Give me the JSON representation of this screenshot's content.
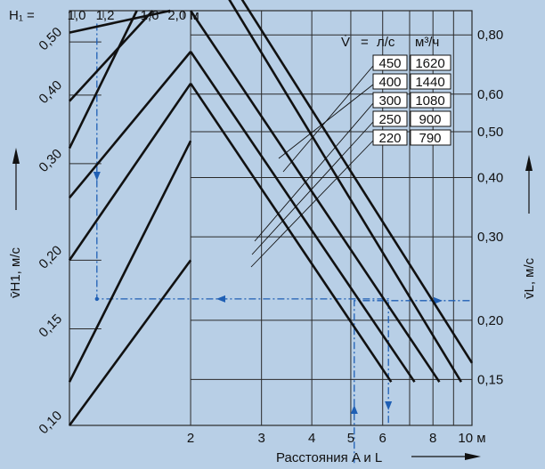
{
  "colors": {
    "background": "#b8cfe6",
    "grid": "#2a2a2a",
    "series_line": "#111111",
    "example_path": "#1f5fb4",
    "label_box": "#ffffff"
  },
  "top_axis": {
    "label": "H₁ =",
    "ticks": [
      {
        "value": 1.0,
        "label": "1,0"
      },
      {
        "value": 1.2,
        "label": "1,2"
      },
      {
        "value": 1.6,
        "label": "1,6"
      },
      {
        "value": 2.0,
        "label": "2,0 м"
      }
    ]
  },
  "legend": {
    "header_v": "V̇",
    "header_eq": "=",
    "header_ls": "л/с",
    "header_m3h": "м³/ч",
    "rows": [
      {
        "ls": "450",
        "m3h": "1620"
      },
      {
        "ls": "400",
        "m3h": "1440"
      },
      {
        "ls": "300",
        "m3h": "1080"
      },
      {
        "ls": "250",
        "m3h": "900"
      },
      {
        "ls": "220",
        "m3h": "790"
      }
    ]
  },
  "left_axis_title": "v̄H1, м/с",
  "right_axis_title": "v̄L, м/с",
  "chart_data": {
    "type": "line",
    "xlabel": "Расстояния A и L",
    "x_scale": "log",
    "y_scale": "log",
    "xlim": [
      1,
      10
    ],
    "ylim_left": [
      0.1,
      0.57
    ],
    "ylim_right": [
      0.12,
      0.9
    ],
    "grid": true,
    "x_ticks": [
      {
        "value": 2,
        "label": "2"
      },
      {
        "value": 3,
        "label": "3"
      },
      {
        "value": 4,
        "label": "4"
      },
      {
        "value": 5,
        "label": "5"
      },
      {
        "value": 6,
        "label": "6"
      },
      {
        "value": 8,
        "label": "8"
      },
      {
        "value": 10,
        "label": "10 м"
      }
    ],
    "x_gridlines": [
      1,
      2,
      3,
      4,
      5,
      6,
      7,
      8,
      9,
      10
    ],
    "left_ticks": [
      {
        "value": 0.1,
        "label": "0,10"
      },
      {
        "value": 0.15,
        "label": "0,15"
      },
      {
        "value": 0.2,
        "label": "0,20"
      },
      {
        "value": 0.3,
        "label": "0,30"
      },
      {
        "value": 0.4,
        "label": "0,40"
      },
      {
        "value": 0.5,
        "label": "0,50"
      }
    ],
    "right_ticks": [
      {
        "value": 0.15,
        "label": "0,15"
      },
      {
        "value": 0.2,
        "label": "0,20"
      },
      {
        "value": 0.3,
        "label": "0,30"
      },
      {
        "value": 0.4,
        "label": "0,40"
      },
      {
        "value": 0.5,
        "label": "0,50"
      },
      {
        "value": 0.6,
        "label": "0,60"
      },
      {
        "value": 0.8,
        "label": "0,80"
      }
    ],
    "rising_lines": [
      [
        [
          1.0,
          0.1
        ],
        [
          2.0,
          0.2
        ]
      ],
      [
        [
          1.0,
          0.12
        ],
        [
          2.0,
          0.33
        ]
      ],
      [
        [
          1.0,
          0.32
        ],
        [
          1.47,
          0.57
        ]
      ],
      [
        [
          1.0,
          0.39
        ],
        [
          1.61,
          0.57
        ]
      ],
      [
        [
          1.0,
          0.52
        ],
        [
          1.78,
          0.57
        ]
      ],
      [
        [
          1.0,
          0.2
        ],
        [
          2.0,
          0.42
        ]
      ],
      [
        [
          1.0,
          0.26
        ],
        [
          2.0,
          0.48
        ]
      ]
    ],
    "falling_lines": [
      [
        [
          2.0,
          0.42
        ],
        [
          6.3,
          0.12
        ]
      ],
      [
        [
          2.0,
          0.48
        ],
        [
          7.2,
          0.12
        ]
      ],
      [
        [
          2.0,
          0.57
        ],
        [
          8.3,
          0.12
        ]
      ],
      [
        [
          2.0,
          0.78
        ],
        [
          9.4,
          0.12
        ]
      ],
      [
        [
          2.0,
          0.84
        ],
        [
          10.0,
          0.13
        ]
      ]
    ],
    "example_path": [
      [
        1.17,
        0.54
      ],
      [
        1.17,
        0.17
      ],
      [
        6.2,
        0.17
      ],
      [
        6.2,
        0.1
      ]
    ],
    "example_path_2": [
      [
        5.1,
        0.1
      ],
      [
        5.1,
        0.22
      ],
      [
        10.0,
        0.22
      ]
    ]
  }
}
